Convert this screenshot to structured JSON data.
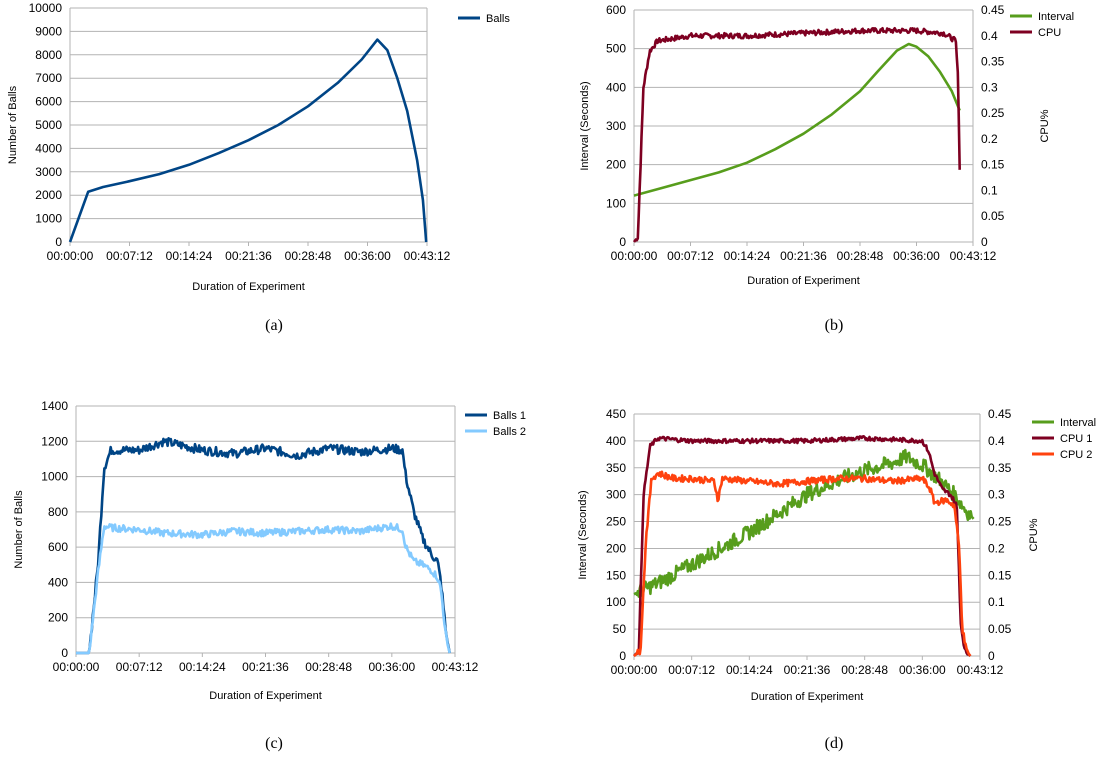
{
  "colors": {
    "balls": "#004586",
    "balls1": "#004586",
    "balls2": "#83caff",
    "interval": "#579d1c",
    "cpu": "#7e0021",
    "cpu1": "#7e0021",
    "cpu2": "#ff420e",
    "grid": "#b3b3b3"
  },
  "chart_data": [
    {
      "id": "a",
      "type": "line",
      "caption": "(a)",
      "xlabel": "Duration of Experiment",
      "ylabel": "Number of Balls",
      "y2label": "",
      "x_ticks": [
        "00:00:00",
        "00:07:12",
        "00:14:24",
        "00:21:36",
        "00:28:48",
        "00:36:00",
        "00:43:12"
      ],
      "xlim": [
        0,
        43.2
      ],
      "ylim": [
        0,
        10000
      ],
      "y_ticks": [
        0,
        1000,
        2000,
        3000,
        4000,
        5000,
        6000,
        7000,
        8000,
        9000,
        10000
      ],
      "series": [
        {
          "name": "Balls",
          "color_key": "balls",
          "axis": "left",
          "points": [
            [
              0,
              0
            ],
            [
              2.2,
              2150
            ],
            [
              4,
              2350
            ],
            [
              7.2,
              2600
            ],
            [
              10.8,
              2900
            ],
            [
              14.4,
              3300
            ],
            [
              18,
              3800
            ],
            [
              21.6,
              4350
            ],
            [
              25.2,
              5000
            ],
            [
              28.8,
              5800
            ],
            [
              32.4,
              6800
            ],
            [
              35.3,
              7800
            ],
            [
              37.2,
              8650
            ],
            [
              38.4,
              8200
            ],
            [
              39.6,
              7000
            ],
            [
              40.8,
              5600
            ],
            [
              42,
              3500
            ],
            [
              42.7,
              1800
            ],
            [
              43.1,
              0
            ]
          ]
        }
      ]
    },
    {
      "id": "b",
      "type": "line",
      "caption": "(b)",
      "xlabel": "Duration of Experiment",
      "ylabel": "Interval (Seconds)",
      "y2label": "CPU%",
      "x_ticks": [
        "00:00:00",
        "00:07:12",
        "00:14:24",
        "00:21:36",
        "00:28:48",
        "00:36:00",
        "00:43:12"
      ],
      "xlim": [
        0,
        43.2
      ],
      "ylim": [
        0,
        600
      ],
      "y_ticks": [
        0,
        100,
        200,
        300,
        400,
        500,
        600
      ],
      "y2lim": [
        0,
        0.45
      ],
      "y2_ticks": [
        "0",
        "0.05",
        "0.1",
        "0.15",
        "0.2",
        "0.25",
        "0.3",
        "0.35",
        "0.4",
        "0.45"
      ],
      "series": [
        {
          "name": "Interval",
          "color_key": "interval",
          "axis": "left",
          "points": [
            [
              0,
              120
            ],
            [
              3.6,
              140
            ],
            [
              7.2,
              160
            ],
            [
              10.8,
              180
            ],
            [
              14.4,
              205
            ],
            [
              18,
              240
            ],
            [
              21.6,
              280
            ],
            [
              25.2,
              330
            ],
            [
              28.8,
              390
            ],
            [
              31,
              440
            ],
            [
              33.5,
              495
            ],
            [
              35,
              512
            ],
            [
              36,
              505
            ],
            [
              37.5,
              480
            ],
            [
              39,
              440
            ],
            [
              40.5,
              390
            ],
            [
              41.5,
              340
            ]
          ]
        },
        {
          "name": "CPU",
          "color_key": "cpu",
          "axis": "right",
          "noise": 0.005,
          "points": [
            [
              0,
              0
            ],
            [
              0.5,
              0.01
            ],
            [
              1.2,
              0.3
            ],
            [
              2,
              0.37
            ],
            [
              3,
              0.39
            ],
            [
              7.2,
              0.4
            ],
            [
              14.4,
              0.4
            ],
            [
              21.6,
              0.405
            ],
            [
              28.8,
              0.41
            ],
            [
              36,
              0.41
            ],
            [
              39.5,
              0.405
            ],
            [
              41,
              0.39
            ],
            [
              41.3,
              0.32
            ],
            [
              41.5,
              0.14
            ]
          ]
        }
      ]
    },
    {
      "id": "c",
      "type": "line",
      "caption": "(c)",
      "xlabel": "Duration of Experiment",
      "ylabel": "Number of Balls",
      "y2label": "",
      "x_ticks": [
        "00:00:00",
        "00:07:12",
        "00:14:24",
        "00:21:36",
        "00:28:48",
        "00:36:00",
        "00:43:12"
      ],
      "xlim": [
        0,
        43.2
      ],
      "ylim": [
        0,
        1400
      ],
      "y_ticks": [
        0,
        200,
        400,
        600,
        800,
        1000,
        1200,
        1400
      ],
      "series": [
        {
          "name": "Balls 1",
          "color_key": "balls1",
          "axis": "left",
          "noise": 25,
          "points": [
            [
              0,
              0
            ],
            [
              1,
              0
            ],
            [
              1.5,
              0
            ],
            [
              2.5,
              500
            ],
            [
              3.2,
              1050
            ],
            [
              4,
              1150
            ],
            [
              7.2,
              1150
            ],
            [
              10,
              1200
            ],
            [
              14.4,
              1150
            ],
            [
              18,
              1130
            ],
            [
              21.6,
              1160
            ],
            [
              25.2,
              1120
            ],
            [
              28.8,
              1160
            ],
            [
              32.4,
              1140
            ],
            [
              36,
              1160
            ],
            [
              37.2,
              1150
            ],
            [
              37.6,
              1000
            ],
            [
              38.5,
              800
            ],
            [
              39.5,
              650
            ],
            [
              40.5,
              560
            ],
            [
              41.2,
              520
            ],
            [
              41.6,
              400
            ],
            [
              42.2,
              100
            ],
            [
              42.6,
              0
            ]
          ]
        },
        {
          "name": "Balls 2",
          "color_key": "balls2",
          "axis": "left",
          "noise": 20,
          "points": [
            [
              0,
              0
            ],
            [
              1,
              0
            ],
            [
              1.5,
              0
            ],
            [
              2.5,
              450
            ],
            [
              3.2,
              720
            ],
            [
              4,
              710
            ],
            [
              7.2,
              700
            ],
            [
              10,
              680
            ],
            [
              14.4,
              670
            ],
            [
              18,
              690
            ],
            [
              21.6,
              680
            ],
            [
              25.2,
              690
            ],
            [
              28.8,
              700
            ],
            [
              32.4,
              690
            ],
            [
              36,
              720
            ],
            [
              37.2,
              700
            ],
            [
              37.6,
              600
            ],
            [
              38.5,
              520
            ],
            [
              39.5,
              500
            ],
            [
              40.5,
              470
            ],
            [
              41.2,
              430
            ],
            [
              41.6,
              360
            ],
            [
              42.2,
              80
            ],
            [
              42.6,
              0
            ]
          ]
        }
      ]
    },
    {
      "id": "d",
      "type": "line",
      "caption": "(d)",
      "xlabel": "Duration of Experiment",
      "ylabel": "Interval (Seconds)",
      "y2label": "CPU%",
      "x_ticks": [
        "00:00:00",
        "00:07:12",
        "00:14:24",
        "00:21:36",
        "00:28:48",
        "00:36:00",
        "00:43:12"
      ],
      "xlim": [
        0,
        43.2
      ],
      "ylim": [
        0,
        450
      ],
      "y_ticks": [
        0,
        50,
        100,
        150,
        200,
        250,
        300,
        350,
        400,
        450
      ],
      "y2lim": [
        0,
        0.45
      ],
      "y2_ticks": [
        "0",
        "0.05",
        "0.1",
        "0.15",
        "0.2",
        "0.25",
        "0.3",
        "0.35",
        "0.4",
        "0.45"
      ],
      "series": [
        {
          "name": "Interval",
          "color_key": "interval",
          "axis": "left",
          "noise": 14,
          "points": [
            [
              0,
              115
            ],
            [
              3.6,
              140
            ],
            [
              7.2,
              170
            ],
            [
              10.8,
              200
            ],
            [
              14.4,
              230
            ],
            [
              18,
              265
            ],
            [
              21.6,
              300
            ],
            [
              25.2,
              325
            ],
            [
              28.8,
              345
            ],
            [
              32.4,
              360
            ],
            [
              34,
              370
            ],
            [
              36,
              355
            ],
            [
              38,
              330
            ],
            [
              40,
              300
            ],
            [
              41.5,
              270
            ],
            [
              42.4,
              255
            ]
          ]
        },
        {
          "name": "CPU 1",
          "color_key": "cpu1",
          "axis": "right",
          "noise": 0.004,
          "points": [
            [
              0,
              0
            ],
            [
              0.6,
              0.01
            ],
            [
              1.2,
              0.3
            ],
            [
              2,
              0.39
            ],
            [
              3,
              0.405
            ],
            [
              7.2,
              0.4
            ],
            [
              14.4,
              0.4
            ],
            [
              21.6,
              0.4
            ],
            [
              28.8,
              0.405
            ],
            [
              36,
              0.4
            ],
            [
              36.8,
              0.38
            ],
            [
              37.5,
              0.34
            ],
            [
              38.5,
              0.31
            ],
            [
              39.5,
              0.3
            ],
            [
              40.3,
              0.28
            ],
            [
              40.8,
              0.06
            ],
            [
              41.3,
              0.01
            ],
            [
              42,
              0
            ]
          ]
        },
        {
          "name": "CPU 2",
          "color_key": "cpu2",
          "axis": "right",
          "noise": 0.006,
          "points": [
            [
              0,
              0
            ],
            [
              0.8,
              0.01
            ],
            [
              1.5,
              0.22
            ],
            [
              2.2,
              0.33
            ],
            [
              3,
              0.34
            ],
            [
              5,
              0.33
            ],
            [
              7.2,
              0.33
            ],
            [
              10,
              0.325
            ],
            [
              10.5,
              0.29
            ],
            [
              11,
              0.33
            ],
            [
              14.4,
              0.325
            ],
            [
              18,
              0.32
            ],
            [
              21.6,
              0.325
            ],
            [
              25.2,
              0.33
            ],
            [
              28.8,
              0.33
            ],
            [
              32.4,
              0.325
            ],
            [
              36,
              0.33
            ],
            [
              37,
              0.31
            ],
            [
              37.5,
              0.285
            ],
            [
              39,
              0.29
            ],
            [
              40,
              0.28
            ],
            [
              40.6,
              0.2
            ],
            [
              41,
              0.05
            ],
            [
              41.5,
              0.01
            ],
            [
              42,
              0
            ]
          ]
        }
      ]
    }
  ]
}
